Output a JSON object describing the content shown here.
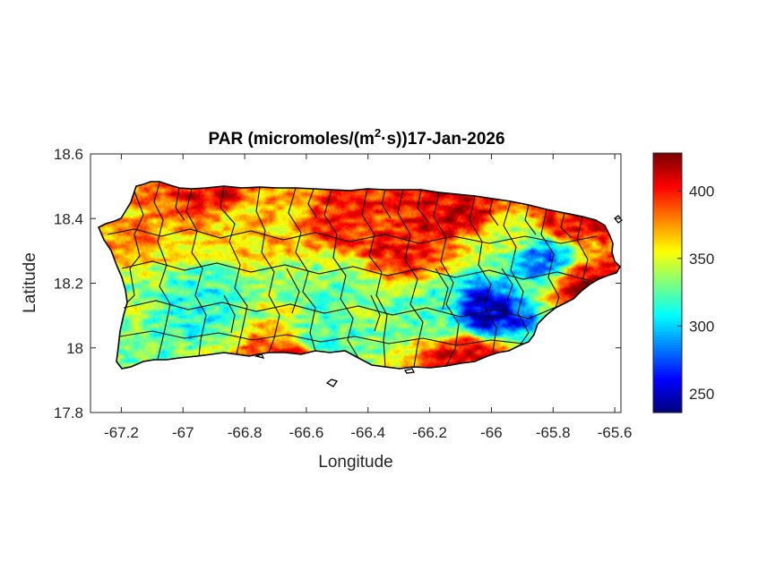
{
  "chart_data": {
    "type": "heatmap",
    "title": {
      "prefix": "PAR (micromoles/(m",
      "superscript": "2",
      "suffix": "·s))17-Jan-2026"
    },
    "xlabel": "Longitude",
    "ylabel": "Latitude",
    "xlim": [
      -67.3,
      -65.58
    ],
    "ylim": [
      17.8,
      18.6
    ],
    "xticks": [
      -67.2,
      -67,
      -66.8,
      -66.6,
      -66.4,
      -66.2,
      -66,
      -65.8,
      -65.6
    ],
    "xtick_labels": [
      "-67.2",
      "-67",
      "-66.8",
      "-66.6",
      "-66.4",
      "-66.2",
      "-66",
      "-65.8",
      "-65.6"
    ],
    "yticks": [
      18.6,
      18.4,
      18.2,
      18,
      17.8
    ],
    "ytick_labels": [
      "18.6",
      "18.4",
      "18.2",
      "18",
      "17.8"
    ],
    "colormap": "jet",
    "clim": [
      236,
      428
    ],
    "colorbar_ticks": [
      400,
      350,
      300,
      250
    ],
    "colorbar_tick_labels": [
      "400",
      "350",
      "300",
      "250"
    ],
    "grid": false,
    "field_hotspots": [
      {
        "lon": -66.03,
        "lat": 18.1,
        "value": 248
      },
      {
        "lon": -65.83,
        "lat": 18.28,
        "value": 285
      },
      {
        "lon": -66.98,
        "lat": 18.12,
        "value": 312
      },
      {
        "lon": -66.55,
        "lat": 18.02,
        "value": 318
      },
      {
        "lon": -66.15,
        "lat": 18.1,
        "value": 325
      },
      {
        "lon": -66.5,
        "lat": 18.21,
        "value": 330
      },
      {
        "lon": -67.15,
        "lat": 18.14,
        "value": 335
      },
      {
        "lon": -65.95,
        "lat": 18.33,
        "value": 340
      },
      {
        "lon": -66.8,
        "lat": 18.4,
        "value": 362
      },
      {
        "lon": -67.2,
        "lat": 18.36,
        "value": 372
      },
      {
        "lon": -66.3,
        "lat": 18.3,
        "value": 405
      },
      {
        "lon": -66.1,
        "lat": 18.42,
        "value": 412
      },
      {
        "lon": -65.68,
        "lat": 18.2,
        "value": 410
      },
      {
        "lon": -66.9,
        "lat": 18.48,
        "value": 402
      },
      {
        "lon": -66.65,
        "lat": 17.97,
        "value": 400
      },
      {
        "lon": -65.75,
        "lat": 18.38,
        "value": 405
      },
      {
        "lon": -66.45,
        "lat": 18.38,
        "value": 395
      },
      {
        "lon": -66.08,
        "lat": 17.98,
        "value": 408
      }
    ]
  }
}
